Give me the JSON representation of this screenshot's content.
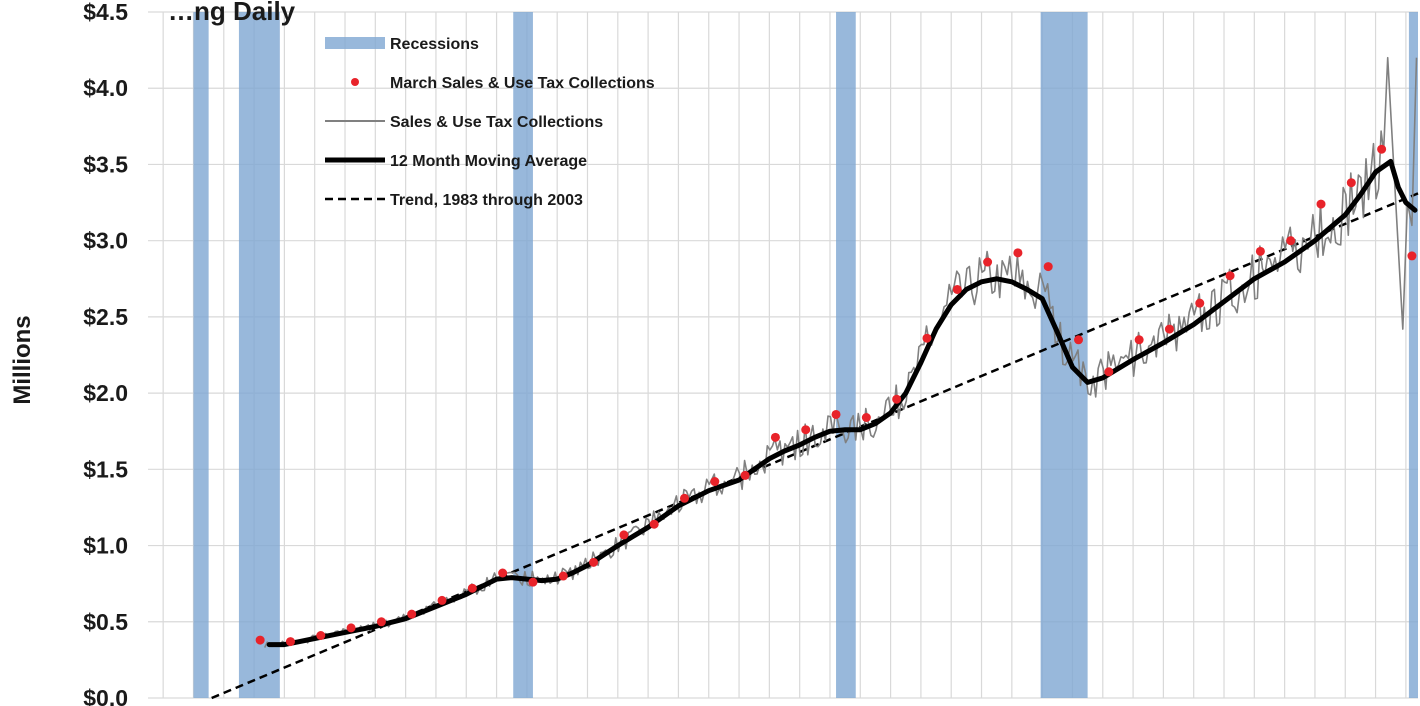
{
  "chart_data": {
    "type": "line",
    "title": "…ng Daily",
    "ylabel": "Millions",
    "ylim": [
      0,
      4.5
    ],
    "x_range": [
      1978.5,
      2020.4
    ],
    "grid": true,
    "y_ticks": [
      {
        "value": 0.0,
        "label": "$0.0"
      },
      {
        "value": 0.5,
        "label": "$0.5"
      },
      {
        "value": 1.0,
        "label": "$1.0"
      },
      {
        "value": 1.5,
        "label": "$1.5"
      },
      {
        "value": 2.0,
        "label": "$2.0"
      },
      {
        "value": 2.5,
        "label": "$2.5"
      },
      {
        "value": 3.0,
        "label": "$3.0"
      },
      {
        "value": 3.5,
        "label": "$3.5"
      },
      {
        "value": 4.0,
        "label": "$4.0"
      },
      {
        "value": 4.5,
        "label": "$4.5"
      }
    ],
    "legend": {
      "position": "top-center",
      "entries": [
        {
          "key": "recessions",
          "label": "Recessions"
        },
        {
          "key": "march",
          "label": "March Sales & Use Tax Collections"
        },
        {
          "key": "monthly",
          "label": "Sales & Use Tax Collections"
        },
        {
          "key": "ma",
          "label": "12 Month Moving Average"
        },
        {
          "key": "trend",
          "label": "Trend, 1983 through 2003"
        }
      ]
    },
    "colors": {
      "recession": "#7ea6d2",
      "march": "#e8232a",
      "monthly": "#808080",
      "ma": "#000000",
      "trend": "#000000",
      "grid": "#d9d9d9"
    },
    "recessions": [
      {
        "start": 1980.0,
        "end": 1980.5
      },
      {
        "start": 1981.5,
        "end": 1982.85
      },
      {
        "start": 1990.55,
        "end": 1991.2
      },
      {
        "start": 2001.2,
        "end": 2001.85
      },
      {
        "start": 2007.95,
        "end": 2009.5
      },
      {
        "start": 2020.1,
        "end": 2020.4
      }
    ],
    "series": [
      {
        "key": "march",
        "name": "March Sales & Use Tax Collections",
        "type": "scatter",
        "x": [
          1982.2,
          1983.2,
          1984.2,
          1985.2,
          1986.2,
          1987.2,
          1988.2,
          1989.2,
          1990.2,
          1991.2,
          1992.2,
          1993.2,
          1994.2,
          1995.2,
          1996.2,
          1997.2,
          1998.2,
          1999.2,
          2000.2,
          2001.2,
          2002.2,
          2003.2,
          2004.2,
          2005.2,
          2006.2,
          2007.2,
          2008.2,
          2009.2,
          2010.2,
          2011.2,
          2012.2,
          2013.2,
          2014.2,
          2015.2,
          2016.2,
          2017.2,
          2018.2,
          2019.2,
          2020.2
        ],
        "y": [
          0.38,
          0.37,
          0.41,
          0.46,
          0.5,
          0.55,
          0.64,
          0.72,
          0.82,
          0.76,
          0.8,
          0.89,
          1.07,
          1.14,
          1.31,
          1.42,
          1.46,
          1.71,
          1.76,
          1.86,
          1.84,
          1.96,
          2.36,
          2.68,
          2.86,
          2.92,
          2.83,
          2.35,
          2.14,
          2.35,
          2.42,
          2.59,
          2.77,
          2.93,
          3.0,
          3.24,
          3.38,
          3.6,
          2.9
        ]
      },
      {
        "key": "ma",
        "name": "12 Month Moving Average",
        "type": "line",
        "x": [
          1982.5,
          1983.0,
          1983.5,
          1984.0,
          1985.0,
          1986.0,
          1987.0,
          1988.0,
          1989.0,
          1989.5,
          1990.0,
          1990.5,
          1991.0,
          1991.5,
          1992.0,
          1992.5,
          1993.0,
          1994.0,
          1995.0,
          1996.0,
          1997.0,
          1998.0,
          1998.5,
          1999.0,
          1999.5,
          2000.0,
          2000.5,
          2001.0,
          2001.5,
          2002.0,
          2002.5,
          2003.0,
          2003.5,
          2004.0,
          2004.5,
          2005.0,
          2005.5,
          2006.0,
          2006.5,
          2007.0,
          2007.5,
          2008.0,
          2008.5,
          2009.0,
          2009.5,
          2010.0,
          2011.0,
          2012.0,
          2013.0,
          2014.0,
          2015.0,
          2016.0,
          2017.0,
          2018.0,
          2018.5,
          2019.0,
          2019.5,
          2019.75,
          2020.0,
          2020.3
        ],
        "y": [
          0.35,
          0.35,
          0.37,
          0.39,
          0.43,
          0.47,
          0.52,
          0.6,
          0.68,
          0.73,
          0.78,
          0.79,
          0.78,
          0.77,
          0.78,
          0.82,
          0.87,
          1.0,
          1.12,
          1.26,
          1.36,
          1.43,
          1.5,
          1.57,
          1.62,
          1.66,
          1.71,
          1.75,
          1.76,
          1.76,
          1.8,
          1.87,
          2.0,
          2.2,
          2.42,
          2.58,
          2.68,
          2.73,
          2.75,
          2.73,
          2.68,
          2.62,
          2.4,
          2.17,
          2.07,
          2.1,
          2.22,
          2.33,
          2.45,
          2.6,
          2.75,
          2.86,
          3.0,
          3.17,
          3.3,
          3.45,
          3.52,
          3.35,
          3.25,
          3.2
        ]
      },
      {
        "key": "trend",
        "name": "Trend, 1983 through 2003",
        "type": "line",
        "x": [
          1980.6,
          2020.4
        ],
        "y": [
          0.0,
          3.31
        ]
      },
      {
        "key": "monthly",
        "name": "Sales & Use Tax Collections",
        "type": "line",
        "note": "noisy monthly series drawn around the moving average",
        "spikes": [
          {
            "x": 2019.4,
            "y": 4.2
          },
          {
            "x": 2019.9,
            "y": 2.42
          },
          {
            "x": 2020.35,
            "y": 4.2
          }
        ]
      }
    ]
  }
}
